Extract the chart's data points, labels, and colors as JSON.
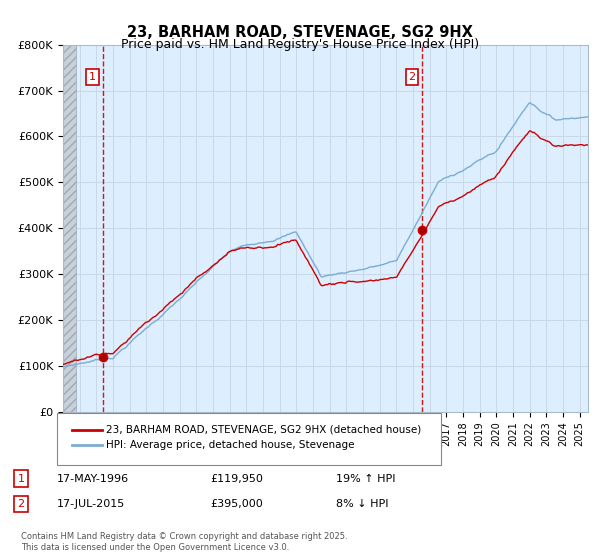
{
  "title": "23, BARHAM ROAD, STEVENAGE, SG2 9HX",
  "subtitle": "Price paid vs. HM Land Registry's House Price Index (HPI)",
  "ylim": [
    0,
    800000
  ],
  "yticks": [
    0,
    100000,
    200000,
    300000,
    400000,
    500000,
    600000,
    700000,
    800000
  ],
  "ytick_labels": [
    "£0",
    "£100K",
    "£200K",
    "£300K",
    "£400K",
    "£500K",
    "£600K",
    "£700K",
    "£800K"
  ],
  "sale1_year": 1996.37,
  "sale1_price": 119950,
  "sale2_year": 2015.54,
  "sale2_price": 395000,
  "red_line_color": "#cc0000",
  "blue_line_color": "#7aadd4",
  "vline_color": "#cc0000",
  "grid_color": "#c8d8e8",
  "background_color": "#ddeeff",
  "plot_bg_color": "#ddeeff",
  "hatch_color": "#b0b8c8",
  "legend_label_red": "23, BARHAM ROAD, STEVENAGE, SG2 9HX (detached house)",
  "legend_label_blue": "HPI: Average price, detached house, Stevenage",
  "footer": "Contains HM Land Registry data © Crown copyright and database right 2025.\nThis data is licensed under the Open Government Licence v3.0.",
  "xstart_year": 1994,
  "xend_year": 2025
}
